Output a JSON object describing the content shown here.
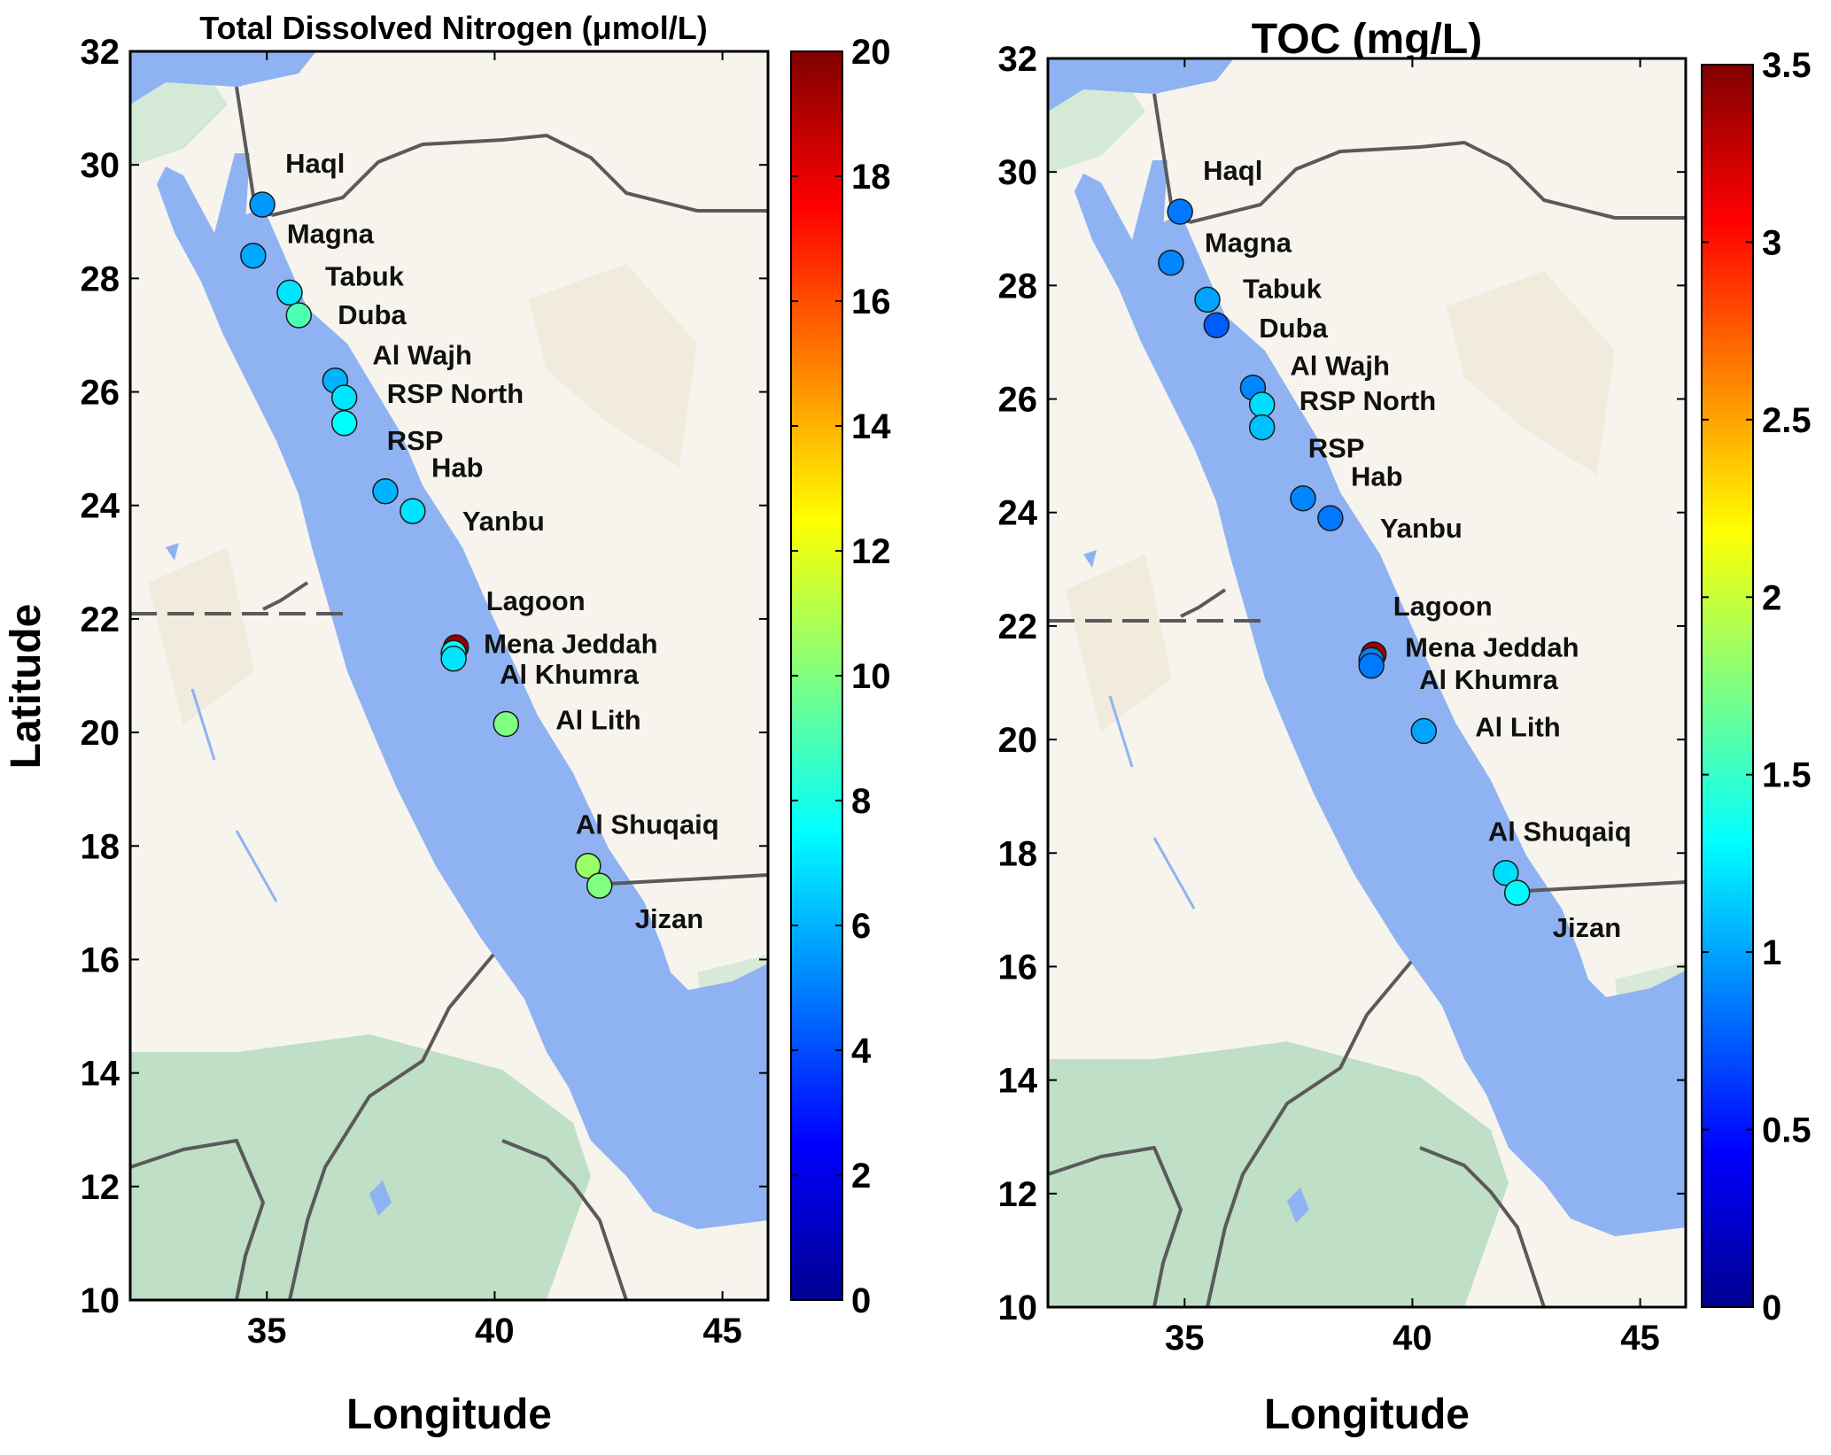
{
  "colors": {
    "sea": "#8fb3f2",
    "land": "#f7f4ee",
    "veg": "#bfdfc7",
    "desert": "#ede8d8",
    "border": "#5a5a5a"
  },
  "shared_ylabel": "Latitude",
  "chart_data": [
    {
      "type": "map-scatter",
      "title": "Total Dissolved Nitrogen (μmol/L)",
      "xlabel": "Longitude",
      "xlim": [
        32,
        46
      ],
      "ylim": [
        10,
        32
      ],
      "xticks": [
        35,
        40,
        45
      ],
      "yticks": [
        10,
        12,
        14,
        16,
        18,
        20,
        22,
        24,
        26,
        28,
        30,
        32
      ],
      "colorbar": {
        "colormap": "jet",
        "range": [
          0,
          20
        ],
        "ticks": [
          0,
          2,
          4,
          6,
          8,
          10,
          12,
          14,
          16,
          18,
          20
        ]
      },
      "points": [
        {
          "name": "Haql",
          "lon": 34.9,
          "lat": 29.3,
          "value": 5.5
        },
        {
          "name": "Magna",
          "lon": 34.7,
          "lat": 28.4,
          "value": 5.8
        },
        {
          "name": "Tabuk",
          "lon": 35.5,
          "lat": 27.75,
          "value": 7.0
        },
        {
          "name": "Duba",
          "lon": 35.7,
          "lat": 27.35,
          "value": 9.0
        },
        {
          "name": "Al Wajh",
          "lon": 36.5,
          "lat": 26.2,
          "value": 6.0
        },
        {
          "name": "RSP North",
          "lon": 36.7,
          "lat": 25.9,
          "value": 7.0
        },
        {
          "name": "RSP",
          "lon": 36.7,
          "lat": 25.45,
          "value": 7.5
        },
        {
          "name": "Hab",
          "lon": 37.6,
          "lat": 24.25,
          "value": 6.0
        },
        {
          "name": "Yanbu",
          "lon": 38.2,
          "lat": 23.9,
          "value": 7.0
        },
        {
          "name": "Lagoon",
          "lon": 39.15,
          "lat": 21.5,
          "value": 19.5
        },
        {
          "name": "Mena Jeddah",
          "lon": 39.1,
          "lat": 21.4,
          "value": 7.5
        },
        {
          "name": "Al Khumra",
          "lon": 39.1,
          "lat": 21.3,
          "value": 7.0
        },
        {
          "name": "Al Lith",
          "lon": 40.25,
          "lat": 20.15,
          "value": 10.0
        },
        {
          "name": "Al Shuqaiq",
          "lon": 42.05,
          "lat": 17.65,
          "value": 10.5
        },
        {
          "name": "Jizan",
          "lon": 42.3,
          "lat": 17.3,
          "value": 10.0
        }
      ]
    },
    {
      "type": "map-scatter",
      "title": "TOC (mg/L)",
      "xlabel": "Longitude",
      "xlim": [
        32,
        46
      ],
      "ylim": [
        10,
        32
      ],
      "xticks": [
        35,
        40,
        45
      ],
      "yticks": [
        10,
        12,
        14,
        16,
        18,
        20,
        22,
        24,
        26,
        28,
        30,
        32
      ],
      "colorbar": {
        "colormap": "jet",
        "range": [
          0,
          3.5
        ],
        "ticks": [
          0,
          0.5,
          1,
          1.5,
          2,
          2.5,
          3,
          3.5
        ]
      },
      "points": [
        {
          "name": "Haql",
          "lon": 34.9,
          "lat": 29.3,
          "value": 0.85
        },
        {
          "name": "Magna",
          "lon": 34.7,
          "lat": 28.4,
          "value": 0.9
        },
        {
          "name": "Tabuk",
          "lon": 35.5,
          "lat": 27.75,
          "value": 1.0
        },
        {
          "name": "Duba",
          "lon": 35.7,
          "lat": 27.3,
          "value": 0.75
        },
        {
          "name": "Al Wajh",
          "lon": 36.5,
          "lat": 26.2,
          "value": 0.9
        },
        {
          "name": "RSP North",
          "lon": 36.7,
          "lat": 25.9,
          "value": 1.2
        },
        {
          "name": "RSP",
          "lon": 36.7,
          "lat": 25.5,
          "value": 1.1
        },
        {
          "name": "Hab",
          "lon": 37.6,
          "lat": 24.25,
          "value": 0.9
        },
        {
          "name": "Yanbu",
          "lon": 38.2,
          "lat": 23.9,
          "value": 0.85
        },
        {
          "name": "Lagoon",
          "lon": 39.15,
          "lat": 21.5,
          "value": 3.4
        },
        {
          "name": "Mena Jeddah",
          "lon": 39.1,
          "lat": 21.4,
          "value": 0.9
        },
        {
          "name": "Al Khumra",
          "lon": 39.1,
          "lat": 21.3,
          "value": 0.85
        },
        {
          "name": "Al Lith",
          "lon": 40.25,
          "lat": 20.15,
          "value": 1.0
        },
        {
          "name": "Al Shuqaiq",
          "lon": 42.05,
          "lat": 17.65,
          "value": 1.2
        },
        {
          "name": "Jizan",
          "lon": 42.3,
          "lat": 17.3,
          "value": 1.3
        }
      ]
    }
  ]
}
